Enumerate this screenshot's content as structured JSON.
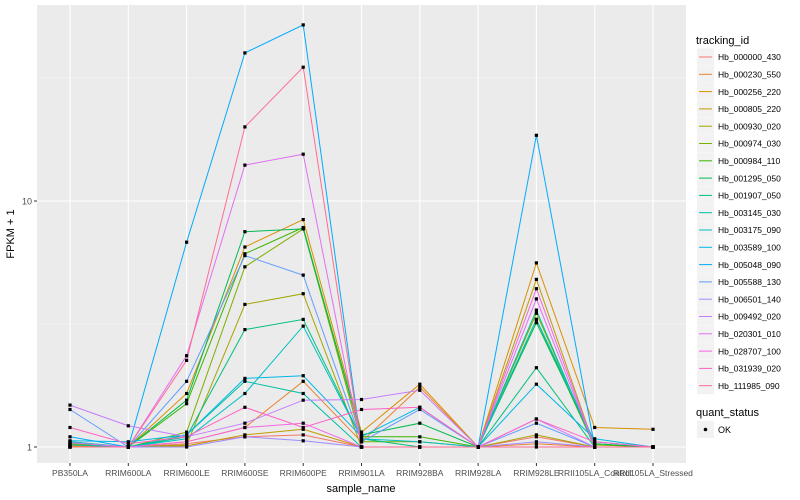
{
  "chart_data": {
    "type": "line",
    "title": "",
    "xlabel": "sample_name",
    "ylabel": "FPKM + 1",
    "y_scale": "log10",
    "yticks": [
      1,
      10
    ],
    "ytick_labels": [
      "1",
      "10"
    ],
    "grid": true,
    "categories": [
      "PB350LA",
      "RRIM600LA",
      "RRIM600LE",
      "RRIM600SE",
      "RRIM600PE",
      "RRIM901LA",
      "RRIM928BA",
      "RRIM928LA",
      "RRIM928LE",
      "RRII105LA_Control",
      "RRII105LA_Stressed"
    ],
    "legend": {
      "position": "right",
      "title": "tracking_id",
      "status_title": "quant_status",
      "status_label": "OK"
    },
    "series": [
      {
        "name": "Hb_000000_430",
        "color": "#F8766D",
        "values": [
          1.02,
          1.0,
          1.03,
          1.1,
          1.12,
          1.0,
          1.0,
          1.0,
          1.1,
          1.0,
          1.0
        ]
      },
      {
        "name": "Hb_000230_550",
        "color": "#EA8331",
        "values": [
          1.05,
          1.0,
          1.05,
          1.2,
          1.85,
          1.05,
          1.75,
          1.0,
          1.03,
          1.0,
          1.0
        ]
      },
      {
        "name": "Hb_000256_220",
        "color": "#D89000",
        "values": [
          1.01,
          1.0,
          1.65,
          6.5,
          8.4,
          1.15,
          1.8,
          1.0,
          5.6,
          1.2,
          1.18
        ]
      },
      {
        "name": "Hb_000805_220",
        "color": "#C09B00",
        "values": [
          1.02,
          1.0,
          1.01,
          1.12,
          1.18,
          1.0,
          1.0,
          1.0,
          4.8,
          1.0,
          1.0
        ]
      },
      {
        "name": "Hb_000930_020",
        "color": "#A3A500",
        "values": [
          1.0,
          1.0,
          1.02,
          3.8,
          4.2,
          1.0,
          1.0,
          1.0,
          1.12,
          1.0,
          1.0
        ]
      },
      {
        "name": "Hb_000974_030",
        "color": "#7CAE00",
        "values": [
          1.03,
          1.0,
          1.15,
          5.4,
          7.7,
          1.05,
          1.05,
          1.0,
          3.5,
          1.02,
          1.0
        ]
      },
      {
        "name": "Hb_000984_110",
        "color": "#39B600",
        "values": [
          1.0,
          1.0,
          1.5,
          6.1,
          7.8,
          1.1,
          1.1,
          1.0,
          3.3,
          1.0,
          1.0
        ]
      },
      {
        "name": "Hb_001295_050",
        "color": "#00BB4E",
        "values": [
          1.04,
          1.0,
          1.55,
          7.5,
          7.7,
          1.12,
          1.25,
          1.0,
          3.2,
          1.03,
          1.0
        ]
      },
      {
        "name": "Hb_001907_050",
        "color": "#00BF7D",
        "values": [
          1.0,
          1.0,
          1.1,
          3.0,
          3.3,
          1.08,
          1.0,
          1.0,
          2.1,
          1.0,
          1.0
        ]
      },
      {
        "name": "Hb_003145_030",
        "color": "#00C1A3",
        "values": [
          1.02,
          1.0,
          1.12,
          1.85,
          1.65,
          1.0,
          1.0,
          1.0,
          3.6,
          1.0,
          1.0
        ]
      },
      {
        "name": "Hb_003175_090",
        "color": "#00BFC4",
        "values": [
          1.05,
          1.0,
          1.08,
          1.65,
          3.1,
          1.08,
          1.05,
          1.0,
          3.3,
          1.05,
          1.0
        ]
      },
      {
        "name": "Hb_003589_100",
        "color": "#00B8E5",
        "values": [
          1.06,
          1.05,
          1.12,
          1.9,
          1.95,
          1.1,
          1.45,
          1.0,
          1.8,
          1.08,
          1.0
        ]
      },
      {
        "name": "Hb_005048_090",
        "color": "#00ABFD",
        "values": [
          1.1,
          1.0,
          6.8,
          40,
          52,
          1.0,
          1.0,
          1.0,
          18.5,
          1.0,
          1.0
        ]
      },
      {
        "name": "Hb_005588_130",
        "color": "#619CFF",
        "values": [
          1.42,
          1.0,
          1.85,
          6.0,
          5.0,
          1.05,
          1.42,
          1.0,
          1.25,
          1.0,
          1.0
        ]
      },
      {
        "name": "Hb_006501_140",
        "color": "#9F8CFF",
        "values": [
          1.0,
          1.0,
          1.0,
          1.1,
          1.06,
          1.0,
          1.0,
          1.0,
          1.05,
          1.0,
          1.0
        ]
      },
      {
        "name": "Hb_009492_020",
        "color": "#C77CFF",
        "values": [
          1.48,
          1.22,
          1.1,
          1.25,
          1.55,
          1.56,
          1.7,
          1.0,
          1.3,
          1.0,
          1.0
        ]
      },
      {
        "name": "Hb_020301_010",
        "color": "#E36EF6",
        "values": [
          1.04,
          1.0,
          2.35,
          14,
          15.5,
          1.0,
          1.0,
          1.0,
          4.0,
          1.0,
          1.0
        ]
      },
      {
        "name": "Hb_028707_100",
        "color": "#F564E3",
        "values": [
          1.0,
          1.0,
          1.05,
          1.2,
          1.25,
          1.0,
          1.0,
          1.0,
          4.4,
          1.0,
          1.0
        ]
      },
      {
        "name": "Hb_031939_020",
        "color": "#FF61C3",
        "values": [
          1.2,
          1.03,
          1.1,
          1.45,
          1.2,
          1.42,
          1.45,
          1.0,
          1.3,
          1.05,
          1.0
        ]
      },
      {
        "name": "Hb_111985_090",
        "color": "#FF6C91",
        "values": [
          1.0,
          1.0,
          2.25,
          20,
          35,
          1.0,
          1.0,
          1.0,
          1.0,
          1.0,
          1.0
        ]
      }
    ]
  }
}
